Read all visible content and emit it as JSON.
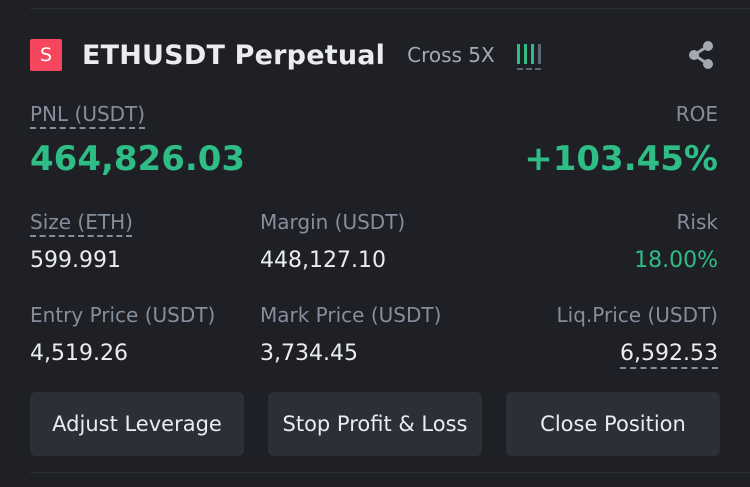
{
  "position": {
    "side_badge": "S",
    "symbol": "ETHUSDT Perpetual",
    "margin_mode": "Cross 5X",
    "leverage_level": 3,
    "leverage_level_max": 4
  },
  "pnl": {
    "label": "PNL (USDT)",
    "value": "464,826.03"
  },
  "roe": {
    "label": "ROE",
    "value": "+103.45%"
  },
  "size": {
    "label": "Size (ETH)",
    "value": "599.991"
  },
  "margin": {
    "label": "Margin (USDT)",
    "value": "448,127.10"
  },
  "risk": {
    "label": "Risk",
    "value": "18.00%"
  },
  "entry_price": {
    "label": "Entry Price (USDT)",
    "value": "4,519.26"
  },
  "mark_price": {
    "label": "Mark Price (USDT)",
    "value": "3,734.45"
  },
  "liq_price": {
    "label": "Liq.Price (USDT)",
    "value": "6,592.53"
  },
  "buttons": {
    "adjust_leverage": "Adjust Leverage",
    "stop_profit_loss": "Stop Profit & Loss",
    "close_position": "Close Position"
  },
  "colors": {
    "background": "#1e2026",
    "profit_green": "#2ebd85",
    "short_red": "#f6465d",
    "button_bg": "#2b2f36",
    "label_gray": "#848e9c"
  },
  "icons": {
    "share": "share-icon",
    "leverage": "leverage-bars-icon"
  }
}
